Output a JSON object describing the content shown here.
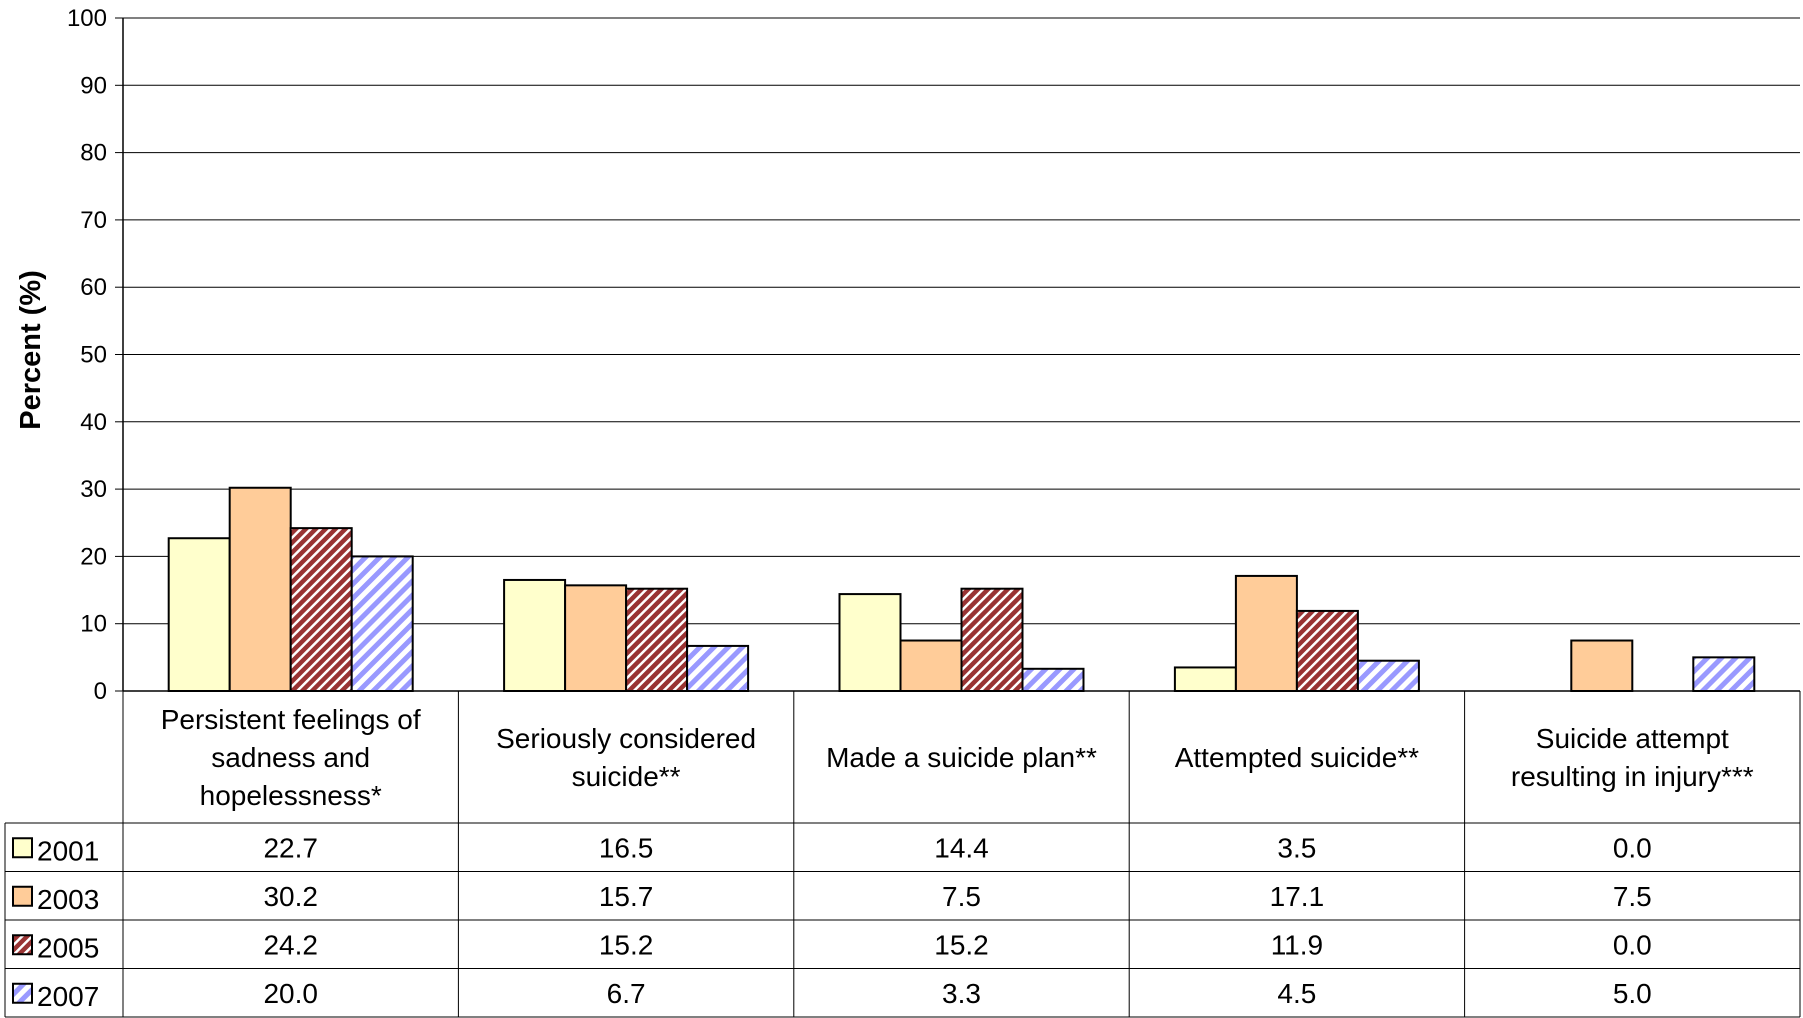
{
  "chart_data": {
    "type": "bar",
    "ylabel": "Percent (%)",
    "ylim": [
      0,
      100
    ],
    "yticks": [
      0,
      10,
      20,
      30,
      40,
      50,
      60,
      70,
      80,
      90,
      100
    ],
    "grid": true,
    "categories": [
      [
        "Persistent feelings of",
        "sadness and",
        "hopelessness*"
      ],
      [
        "Seriously considered",
        "suicide**"
      ],
      [
        "Made a suicide plan**"
      ],
      [
        "Attempted suicide**"
      ],
      [
        "Suicide attempt",
        "resulting in injury***"
      ]
    ],
    "series": [
      {
        "name": "2001",
        "values": [
          22.7,
          16.5,
          14.4,
          3.5,
          0.0
        ],
        "labels": [
          "22.7",
          "16.5",
          "14.4",
          "3.5",
          "0.0"
        ],
        "color": "#ffffcc",
        "pattern": "solid"
      },
      {
        "name": "2003",
        "values": [
          30.2,
          15.7,
          7.5,
          17.1,
          7.5
        ],
        "labels": [
          "30.2",
          "15.7",
          "7.5",
          "17.1",
          "7.5"
        ],
        "color": "#ffcc99",
        "pattern": "solid"
      },
      {
        "name": "2005",
        "values": [
          24.2,
          15.2,
          15.2,
          11.9,
          0.0
        ],
        "labels": [
          "24.2",
          "15.2",
          "15.2",
          "11.9",
          "0.0"
        ],
        "color": "#993333",
        "pattern": "diagonal-hatch"
      },
      {
        "name": "2007",
        "values": [
          20.0,
          6.7,
          3.3,
          4.5,
          5.0
        ],
        "labels": [
          "20.0",
          "6.7",
          "3.3",
          "4.5",
          "5.0"
        ],
        "color": "#9999ff",
        "pattern": "diagonal-stripes"
      }
    ],
    "data_table": true
  }
}
